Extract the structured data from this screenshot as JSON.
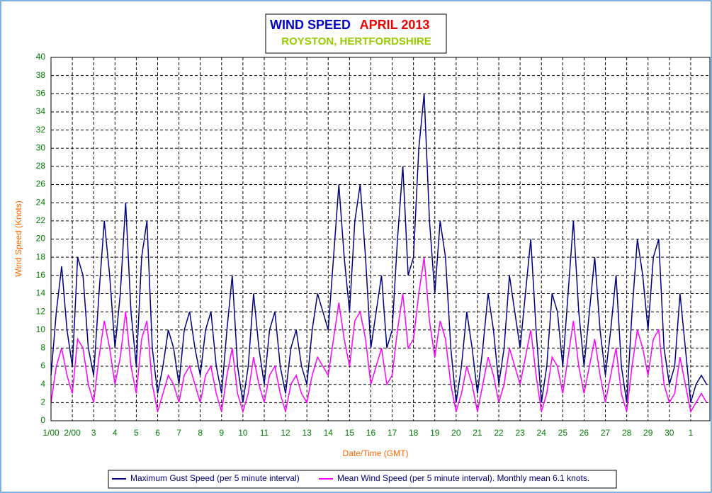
{
  "chart_data": {
    "type": "line",
    "title": "WIND SPEED",
    "title_date": "APRIL 2013",
    "subtitle": "ROYSTON, HERTFORDSHIRE",
    "x_label": "Date/Time (GMT)",
    "y_label": "Wind Speed (Knots)",
    "x": [
      0,
      0.25,
      0.5,
      0.75,
      1,
      1.25,
      1.5,
      1.75,
      2,
      2.25,
      2.5,
      2.75,
      3,
      3.25,
      3.5,
      3.75,
      4,
      4.25,
      4.5,
      4.75,
      5,
      5.25,
      5.5,
      5.75,
      6,
      6.25,
      6.5,
      6.75,
      7,
      7.25,
      7.5,
      7.75,
      8,
      8.25,
      8.5,
      8.75,
      9,
      9.25,
      9.5,
      9.75,
      10,
      10.25,
      10.5,
      10.75,
      11,
      11.25,
      11.5,
      11.75,
      12,
      12.25,
      12.5,
      12.75,
      13,
      13.25,
      13.5,
      13.75,
      14,
      14.25,
      14.5,
      14.75,
      15,
      15.25,
      15.5,
      15.75,
      16,
      16.25,
      16.5,
      16.75,
      17,
      17.25,
      17.5,
      17.75,
      18,
      18.25,
      18.5,
      18.75,
      19,
      19.25,
      19.5,
      19.75,
      20,
      20.25,
      20.5,
      20.75,
      21,
      21.25,
      21.5,
      21.75,
      22,
      22.25,
      22.5,
      22.75,
      23,
      23.25,
      23.5,
      23.75,
      24,
      24.25,
      24.5,
      24.75,
      25,
      25.25,
      25.5,
      25.75,
      26,
      26.25,
      26.5,
      26.75,
      27,
      27.25,
      27.5,
      27.75,
      28,
      28.25,
      28.5,
      28.75,
      29,
      29.25,
      29.5,
      29.75,
      30,
      30.25,
      30.5,
      30.75
    ],
    "series": [
      {
        "name": "Maximum Gust Speed (per 5 minute interval)",
        "color": "#000080",
        "values": [
          5,
          12,
          17,
          10,
          6,
          18,
          16,
          8,
          5,
          14,
          22,
          16,
          8,
          14,
          24,
          12,
          6,
          18,
          22,
          8,
          3,
          6,
          10,
          8,
          4,
          10,
          12,
          8,
          5,
          10,
          12,
          6,
          3,
          10,
          16,
          6,
          2,
          6,
          14,
          8,
          4,
          10,
          12,
          6,
          3,
          8,
          10,
          6,
          4,
          10,
          14,
          12,
          10,
          18,
          26,
          18,
          12,
          22,
          26,
          18,
          8,
          12,
          16,
          8,
          10,
          20,
          28,
          16,
          18,
          30,
          36,
          22,
          14,
          22,
          18,
          8,
          2,
          6,
          12,
          8,
          3,
          8,
          14,
          10,
          4,
          8,
          16,
          12,
          8,
          14,
          20,
          10,
          2,
          6,
          14,
          12,
          6,
          14,
          22,
          12,
          6,
          12,
          18,
          10,
          5,
          10,
          16,
          6,
          2,
          12,
          20,
          16,
          10,
          18,
          20,
          8,
          4,
          6,
          14,
          8,
          2,
          4,
          5,
          4
        ]
      },
      {
        "name": "Mean Wind Speed (per 5 minute interval). Monthly mean 6.1 knots.",
        "color": "#ff00ff",
        "values": [
          2,
          6,
          8,
          5,
          3,
          9,
          8,
          4,
          2,
          7,
          11,
          8,
          4,
          7,
          12,
          6,
          3,
          9,
          11,
          4,
          1,
          3,
          5,
          4,
          2,
          5,
          6,
          4,
          2,
          5,
          6,
          3,
          1,
          5,
          8,
          3,
          1,
          3,
          7,
          4,
          2,
          5,
          6,
          3,
          1,
          4,
          5,
          3,
          2,
          5,
          7,
          6,
          5,
          9,
          13,
          9,
          6,
          11,
          12,
          9,
          4,
          6,
          8,
          4,
          5,
          10,
          14,
          8,
          9,
          14,
          18,
          11,
          7,
          11,
          9,
          4,
          1,
          3,
          6,
          4,
          1,
          4,
          7,
          5,
          2,
          4,
          8,
          6,
          4,
          7,
          10,
          5,
          1,
          3,
          7,
          6,
          3,
          7,
          11,
          6,
          3,
          6,
          9,
          5,
          2,
          5,
          8,
          3,
          1,
          6,
          10,
          8,
          5,
          9,
          10,
          4,
          2,
          3,
          7,
          4,
          1,
          2,
          3,
          2
        ]
      }
    ],
    "xlim": [
      0,
      30.9
    ],
    "xticks": [
      {
        "value": 0,
        "label": "1/00"
      },
      {
        "value": 1,
        "label": "2/00"
      },
      {
        "value": 2,
        "label": "3"
      },
      {
        "value": 3,
        "label": "4"
      },
      {
        "value": 4,
        "label": "5"
      },
      {
        "value": 5,
        "label": "6"
      },
      {
        "value": 6,
        "label": "7"
      },
      {
        "value": 7,
        "label": "8"
      },
      {
        "value": 8,
        "label": "9"
      },
      {
        "value": 9,
        "label": "10"
      },
      {
        "value": 10,
        "label": "11"
      },
      {
        "value": 11,
        "label": "12"
      },
      {
        "value": 12,
        "label": "13"
      },
      {
        "value": 13,
        "label": "14"
      },
      {
        "value": 14,
        "label": "15"
      },
      {
        "value": 15,
        "label": "16"
      },
      {
        "value": 16,
        "label": "17"
      },
      {
        "value": 17,
        "label": "18"
      },
      {
        "value": 18,
        "label": "19"
      },
      {
        "value": 19,
        "label": "20"
      },
      {
        "value": 20,
        "label": "21"
      },
      {
        "value": 21,
        "label": "22"
      },
      {
        "value": 22,
        "label": "23"
      },
      {
        "value": 23,
        "label": "24"
      },
      {
        "value": 24,
        "label": "25"
      },
      {
        "value": 25,
        "label": "26"
      },
      {
        "value": 26,
        "label": "27"
      },
      {
        "value": 27,
        "label": "28"
      },
      {
        "value": 28,
        "label": "29"
      },
      {
        "value": 29,
        "label": "30"
      },
      {
        "value": 30,
        "label": "1"
      }
    ],
    "ylim": [
      0,
      40
    ],
    "yticks": [
      0,
      2,
      4,
      6,
      8,
      10,
      12,
      14,
      16,
      18,
      20,
      22,
      24,
      26,
      28,
      30,
      32,
      34,
      36,
      38,
      40
    ],
    "grid": true,
    "legend": "bottom"
  }
}
